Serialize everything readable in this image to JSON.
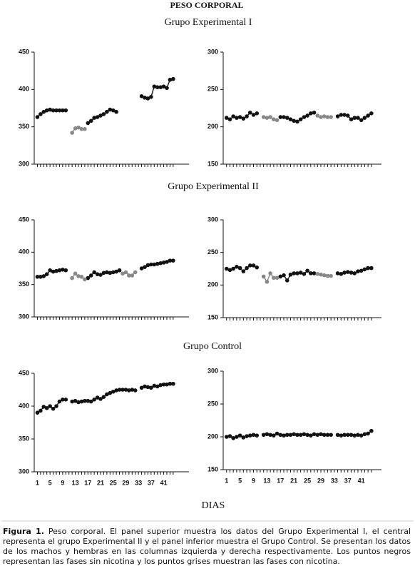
{
  "title": "PESO CORPORAL",
  "group_titles": [
    "Grupo Experimental I",
    "Grupo Experimental II",
    "Grupo Control"
  ],
  "x_label": "DIAS",
  "caption": {
    "label": "Figura 1.",
    "text": "Peso corporal. El panel superior muestra los datos del Grupo Experimental I, el central representa el grupo Experimental II  y el panel inferior muestra el Grupo Control. Se presentan los datos de los machos y hembras en las columnas izquierda y derecha respectivamente. Los puntos negros representan las fases sin nicotina y los puntos grises muestran las fases con nicotina."
  },
  "chart_data": [
    {
      "type": "line",
      "xlim": [
        0,
        49
      ],
      "ylim": [
        300,
        450
      ],
      "yticks": [
        300,
        350,
        400,
        450
      ],
      "x": [
        1,
        2,
        3,
        4,
        5,
        6,
        7,
        8,
        9,
        10,
        11,
        12,
        13,
        14,
        15,
        16,
        17,
        18,
        19,
        20,
        21,
        22,
        23,
        24,
        25,
        26,
        27,
        28,
        29,
        30,
        31,
        32,
        33,
        34,
        35,
        36,
        37,
        38,
        39,
        40,
        41,
        42,
        43,
        44
      ],
      "series": [
        {
          "color": "#111111",
          "values": [
            363,
            367,
            370,
            372,
            373,
            372,
            372,
            372,
            372,
            372,
            null,
            null,
            null,
            null,
            null,
            null,
            355,
            358,
            362,
            363,
            365,
            367,
            370,
            373,
            372,
            370,
            null,
            null,
            null,
            null,
            null,
            null,
            null,
            391,
            389,
            388,
            390,
            404,
            403,
            403,
            404,
            402,
            413,
            414
          ]
        },
        {
          "color": "#888888",
          "values": [
            null,
            null,
            null,
            null,
            null,
            null,
            null,
            null,
            null,
            null,
            null,
            342,
            348,
            349,
            347,
            347,
            null,
            null,
            null,
            null,
            null,
            null,
            null,
            null,
            null,
            null,
            null,
            null,
            null,
            null,
            null,
            null,
            null,
            null,
            null,
            null,
            null,
            null,
            null,
            null,
            null,
            null,
            null,
            null
          ]
        }
      ]
    },
    {
      "type": "line",
      "xlim": [
        0,
        47
      ],
      "ylim": [
        150,
        300
      ],
      "yticks": [
        150,
        200,
        250,
        300
      ],
      "x": [
        1,
        2,
        3,
        4,
        5,
        6,
        7,
        8,
        9,
        10,
        11,
        12,
        13,
        14,
        15,
        16,
        17,
        18,
        19,
        20,
        21,
        22,
        23,
        24,
        25,
        26,
        27,
        28,
        29,
        30,
        31,
        32,
        33,
        34,
        35,
        36,
        37,
        38,
        39,
        40,
        41,
        42,
        43,
        44
      ],
      "series": [
        {
          "color": "#111111",
          "values": [
            212,
            210,
            214,
            212,
            213,
            211,
            214,
            219,
            216,
            218,
            null,
            null,
            null,
            null,
            null,
            null,
            213,
            213,
            212,
            210,
            208,
            207,
            210,
            213,
            215,
            218,
            219,
            null,
            null,
            null,
            null,
            null,
            null,
            214,
            216,
            216,
            215,
            210,
            212,
            212,
            209,
            212,
            215,
            218
          ]
        },
        {
          "color": "#888888",
          "values": [
            null,
            null,
            null,
            null,
            null,
            null,
            null,
            null,
            null,
            null,
            null,
            213,
            212,
            213,
            210,
            209,
            null,
            null,
            null,
            null,
            null,
            null,
            null,
            null,
            null,
            null,
            null,
            215,
            213,
            214,
            213,
            213,
            null,
            null,
            null,
            null,
            null,
            null,
            null,
            null,
            null,
            null,
            null,
            null
          ]
        }
      ]
    },
    {
      "type": "line",
      "xlim": [
        0,
        49
      ],
      "ylim": [
        300,
        450
      ],
      "yticks": [
        300,
        350,
        400,
        450
      ],
      "x": [
        1,
        2,
        3,
        4,
        5,
        6,
        7,
        8,
        9,
        10,
        11,
        12,
        13,
        14,
        15,
        16,
        17,
        18,
        19,
        20,
        21,
        22,
        23,
        24,
        25,
        26,
        27,
        28,
        29,
        30,
        31,
        32,
        33,
        34,
        35,
        36,
        37,
        38,
        39,
        40,
        41,
        42,
        43,
        44
      ],
      "series": [
        {
          "color": "#111111",
          "values": [
            362,
            362,
            363,
            366,
            372,
            370,
            371,
            372,
            373,
            372,
            null,
            null,
            null,
            null,
            null,
            null,
            360,
            364,
            369,
            366,
            365,
            368,
            369,
            368,
            369,
            370,
            372,
            null,
            null,
            null,
            null,
            null,
            null,
            375,
            377,
            380,
            381,
            381,
            382,
            383,
            384,
            385,
            387,
            387
          ]
        },
        {
          "color": "#888888",
          "values": [
            null,
            null,
            null,
            null,
            null,
            null,
            null,
            null,
            null,
            null,
            null,
            360,
            367,
            363,
            362,
            358,
            null,
            null,
            null,
            null,
            null,
            null,
            null,
            null,
            null,
            null,
            null,
            367,
            369,
            364,
            364,
            369,
            null,
            null,
            null,
            null,
            null,
            null,
            null,
            null,
            null,
            null,
            null,
            null
          ]
        }
      ]
    },
    {
      "type": "line",
      "xlim": [
        0,
        47
      ],
      "ylim": [
        150,
        300
      ],
      "yticks": [
        150,
        200,
        250,
        300
      ],
      "x": [
        1,
        2,
        3,
        4,
        5,
        6,
        7,
        8,
        9,
        10,
        11,
        12,
        13,
        14,
        15,
        16,
        17,
        18,
        19,
        20,
        21,
        22,
        23,
        24,
        25,
        26,
        27,
        28,
        29,
        30,
        31,
        32,
        33,
        34,
        35,
        36,
        37,
        38,
        39,
        40,
        41,
        42,
        43,
        44
      ],
      "series": [
        {
          "color": "#111111",
          "values": [
            225,
            223,
            225,
            228,
            226,
            221,
            226,
            230,
            230,
            227,
            null,
            null,
            null,
            null,
            null,
            null,
            213,
            215,
            207,
            216,
            218,
            218,
            219,
            217,
            222,
            218,
            218,
            null,
            null,
            null,
            null,
            null,
            null,
            218,
            217,
            219,
            220,
            219,
            218,
            221,
            222,
            224,
            226,
            226
          ]
        },
        {
          "color": "#888888",
          "values": [
            null,
            null,
            null,
            null,
            null,
            null,
            null,
            null,
            null,
            null,
            null,
            213,
            205,
            218,
            211,
            211,
            null,
            null,
            null,
            null,
            null,
            null,
            null,
            null,
            null,
            null,
            null,
            217,
            216,
            215,
            214,
            214,
            null,
            null,
            null,
            null,
            null,
            null,
            null,
            null,
            null,
            null,
            null,
            null
          ]
        }
      ]
    },
    {
      "type": "line",
      "xlim": [
        0,
        49
      ],
      "ylim": [
        300,
        450
      ],
      "yticks": [
        300,
        350,
        400,
        450
      ],
      "xticks": [
        1,
        5,
        9,
        13,
        17,
        21,
        25,
        29,
        33,
        37,
        41
      ],
      "x": [
        1,
        2,
        3,
        4,
        5,
        6,
        7,
        8,
        9,
        10,
        11,
        12,
        13,
        14,
        15,
        16,
        17,
        18,
        19,
        20,
        21,
        22,
        23,
        24,
        25,
        26,
        27,
        28,
        29,
        30,
        31,
        32,
        33,
        34,
        35,
        36,
        37,
        38,
        39,
        40,
        41,
        42,
        43,
        44
      ],
      "series": [
        {
          "color": "#111111",
          "values": [
            390,
            393,
            399,
            397,
            400,
            396,
            400,
            407,
            410,
            410,
            null,
            407,
            408,
            406,
            407,
            408,
            408,
            407,
            410,
            413,
            411,
            414,
            418,
            420,
            422,
            424,
            425,
            425,
            425,
            424,
            425,
            424,
            null,
            428,
            430,
            429,
            428,
            431,
            430,
            432,
            433,
            433,
            434,
            434
          ]
        }
      ]
    },
    {
      "type": "line",
      "xlim": [
        0,
        47
      ],
      "ylim": [
        150,
        300
      ],
      "yticks": [
        150,
        200,
        250,
        300
      ],
      "xticks": [
        1,
        5,
        9,
        13,
        17,
        21,
        25,
        29,
        33,
        37,
        41
      ],
      "x": [
        1,
        2,
        3,
        4,
        5,
        6,
        7,
        8,
        9,
        10,
        11,
        12,
        13,
        14,
        15,
        16,
        17,
        18,
        19,
        20,
        21,
        22,
        23,
        24,
        25,
        26,
        27,
        28,
        29,
        30,
        31,
        32,
        33,
        34,
        35,
        36,
        37,
        38,
        39,
        40,
        41,
        42,
        43,
        44
      ],
      "series": [
        {
          "color": "#111111",
          "values": [
            200,
            201,
            198,
            200,
            202,
            199,
            201,
            202,
            203,
            202,
            null,
            203,
            204,
            203,
            202,
            205,
            203,
            202,
            203,
            203,
            204,
            203,
            203,
            204,
            203,
            202,
            204,
            203,
            204,
            203,
            203,
            203,
            null,
            203,
            202,
            203,
            203,
            203,
            202,
            203,
            202,
            204,
            205,
            209
          ]
        }
      ]
    }
  ]
}
